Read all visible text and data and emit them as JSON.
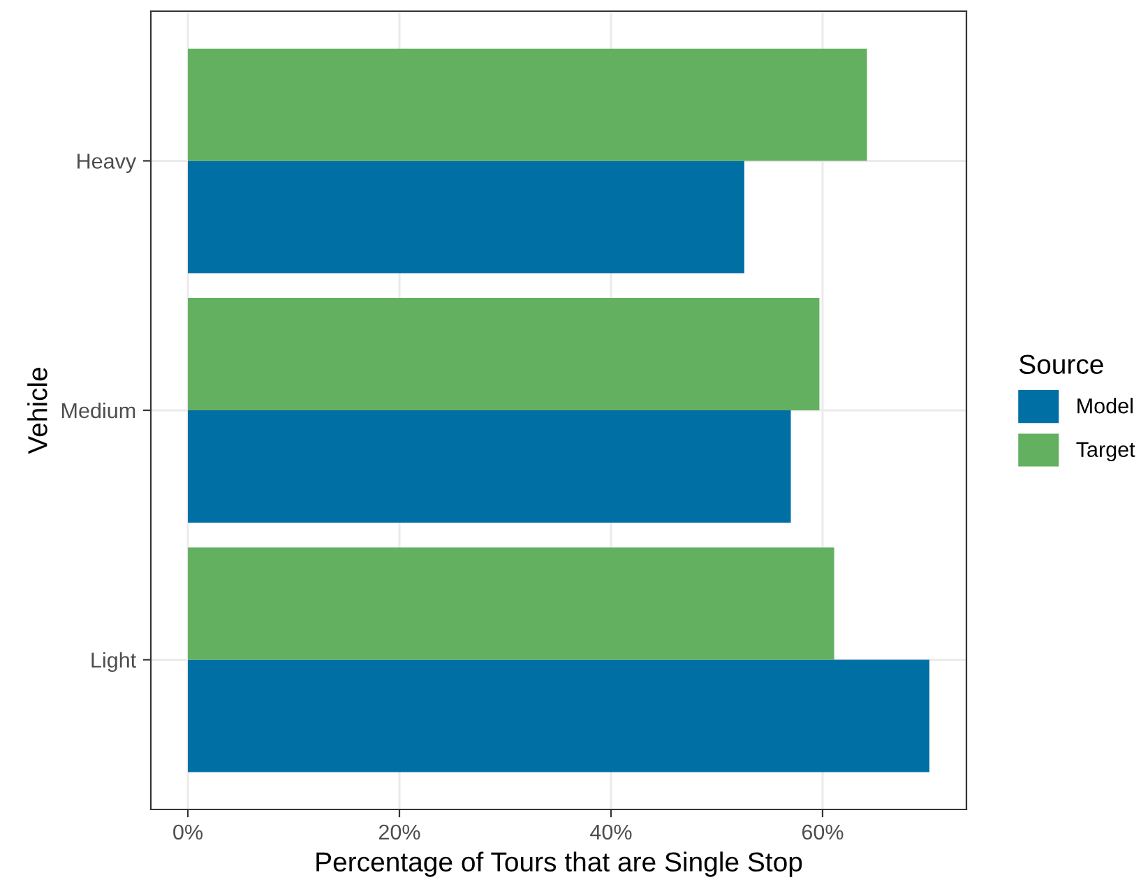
{
  "chart_data": {
    "type": "bar",
    "orientation": "horizontal",
    "categories": [
      "Heavy",
      "Medium",
      "Light"
    ],
    "series": [
      {
        "name": "Model",
        "color": "#006fa3",
        "values": [
          52.6,
          57.0,
          70.1
        ]
      },
      {
        "name": "Target",
        "color": "#63b061",
        "values": [
          64.2,
          59.7,
          61.1
        ]
      }
    ],
    "xlabel": "Percentage of Tours that are Single Stop",
    "ylabel": "Vehicle",
    "legend_title": "Source",
    "legend": "right",
    "xlim": [
      -3.5,
      73.6
    ],
    "xticks": [
      {
        "value": 0,
        "label": "0%"
      },
      {
        "value": 20,
        "label": "20%"
      },
      {
        "value": 40,
        "label": "40%"
      },
      {
        "value": 60,
        "label": "60%"
      }
    ],
    "grid": true
  }
}
